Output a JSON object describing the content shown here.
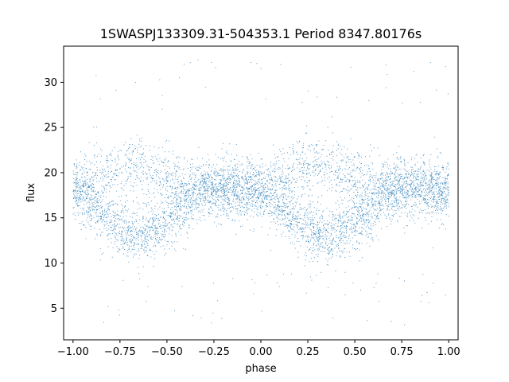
{
  "chart_data": {
    "type": "scatter",
    "title": "1SWASPJ133309.31-504353.1 Period 8347.80176s",
    "xlabel": "phase",
    "ylabel": "flux",
    "xlim": [
      -1.05,
      1.05
    ],
    "ylim": [
      1.5,
      34
    ],
    "xticks": [
      -1.0,
      -0.75,
      -0.5,
      -0.25,
      0.0,
      0.25,
      0.5,
      0.75,
      1.0
    ],
    "xtick_labels": [
      "−1.00",
      "−0.75",
      "−0.50",
      "−0.25",
      "0.00",
      "0.25",
      "0.50",
      "0.75",
      "1.00"
    ],
    "yticks": [
      5,
      10,
      15,
      20,
      25,
      30
    ],
    "ytick_labels": [
      "5",
      "10",
      "15",
      "20",
      "25",
      "30"
    ],
    "grid": false,
    "marker_color": "#1f77b4",
    "series": [
      {
        "phase_range": [
          -1.0,
          1.0
        ],
        "period_in_phase": 1.0,
        "mean_profile": {
          "phase": [
            0.0,
            0.1,
            0.2,
            0.3,
            0.35,
            0.4,
            0.5,
            0.6,
            0.7,
            0.8,
            0.9,
            1.0
          ],
          "flux": [
            18.0,
            16.5,
            14.5,
            13.2,
            13.0,
            13.3,
            14.5,
            16.5,
            18.2,
            18.3,
            18.2,
            18.0
          ]
        },
        "upper_branch": {
          "phase": [
            0.0,
            0.1,
            0.2,
            0.3,
            0.4,
            0.5,
            0.6,
            0.7
          ],
          "flux": [
            18.0,
            19.5,
            20.5,
            21.0,
            20.5,
            19.5,
            18.5,
            18.2
          ]
        },
        "scatter_sigma": 1.6,
        "outliers_low_range": [
          3,
          9
        ],
        "outliers_high_range": [
          27,
          32.5
        ]
      }
    ]
  }
}
